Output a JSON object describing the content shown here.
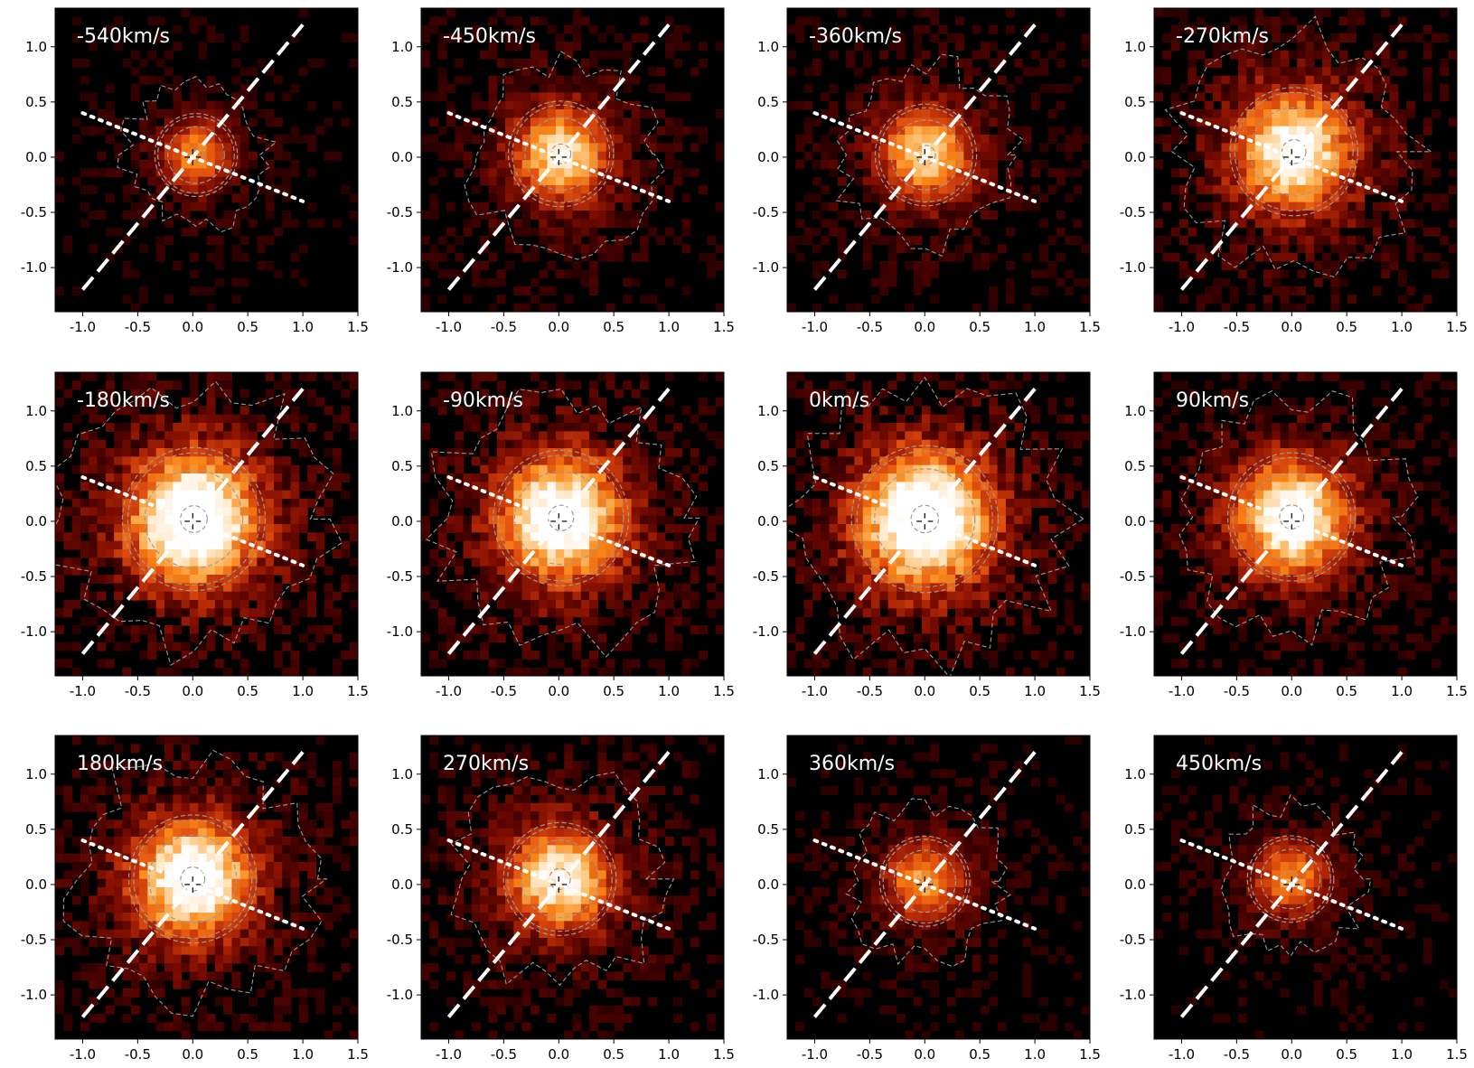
{
  "chart_data": {
    "type": "heatmap",
    "layout": {
      "rows": 3,
      "columns": 4
    },
    "colormap": [
      "#000000",
      "#3d0000",
      "#7a0c00",
      "#b52a06",
      "#e2520f",
      "#f98618",
      "#fdb862",
      "#ffe6c2",
      "#ffffff"
    ],
    "xlim": [
      -1.25,
      1.5
    ],
    "ylim": [
      -1.4,
      1.35
    ],
    "x_ticks": [
      "-1.0",
      "-0.5",
      "0.0",
      "0.5",
      "1.0",
      "1.5"
    ],
    "x_tick_values": [
      -1.0,
      -0.5,
      0.0,
      0.5,
      1.0,
      1.5
    ],
    "y_ticks": [
      "-1.0",
      "-0.5",
      "0.0",
      "0.5",
      "1.0"
    ],
    "y_tick_values": [
      -1.0,
      -0.5,
      0.0,
      0.5,
      1.0
    ],
    "dashed_line": {
      "color": "#ffffff",
      "from": [
        -1.0,
        -1.2
      ],
      "to": [
        1.0,
        1.2
      ]
    },
    "dotted_line": {
      "color": "#ffffff",
      "from": [
        -1.0,
        0.4
      ],
      "to": [
        1.0,
        -0.4
      ]
    },
    "contour_color": "#9a9a9a",
    "center_marker": [
      0.0,
      0.0
    ],
    "panels": [
      {
        "label": "-540km/s",
        "peak": 0.55,
        "width": 0.22,
        "center": [
          0.03,
          0.02
        ],
        "halo": 0.2
      },
      {
        "label": "-450km/s",
        "peak": 0.75,
        "width": 0.28,
        "center": [
          0.02,
          0.03
        ],
        "halo": 0.35
      },
      {
        "label": "-360km/s",
        "peak": 0.72,
        "width": 0.27,
        "center": [
          0.01,
          0.02
        ],
        "halo": 0.32
      },
      {
        "label": "-270km/s",
        "peak": 0.85,
        "width": 0.34,
        "center": [
          0.02,
          0.05
        ],
        "halo": 0.5
      },
      {
        "label": "-180km/s",
        "peak": 1.0,
        "width": 0.38,
        "center": [
          0.01,
          0.02
        ],
        "halo": 0.6
      },
      {
        "label": "-90km/s",
        "peak": 0.93,
        "width": 0.36,
        "center": [
          0.02,
          0.03
        ],
        "halo": 0.55
      },
      {
        "label": "0km/s",
        "peak": 1.0,
        "width": 0.39,
        "center": [
          0.0,
          0.02
        ],
        "halo": 0.6
      },
      {
        "label": "90km/s",
        "peak": 0.9,
        "width": 0.34,
        "center": [
          0.0,
          0.04
        ],
        "halo": 0.45
      },
      {
        "label": "180km/s",
        "peak": 0.95,
        "width": 0.34,
        "center": [
          0.0,
          0.05
        ],
        "halo": 0.5
      },
      {
        "label": "270km/s",
        "peak": 0.8,
        "width": 0.3,
        "center": [
          0.01,
          0.05
        ],
        "halo": 0.42
      },
      {
        "label": "360km/s",
        "peak": 0.6,
        "width": 0.24,
        "center": [
          0.0,
          0.03
        ],
        "halo": 0.25
      },
      {
        "label": "450km/s",
        "peak": 0.55,
        "width": 0.23,
        "center": [
          -0.01,
          0.05
        ],
        "halo": 0.22
      }
    ]
  }
}
